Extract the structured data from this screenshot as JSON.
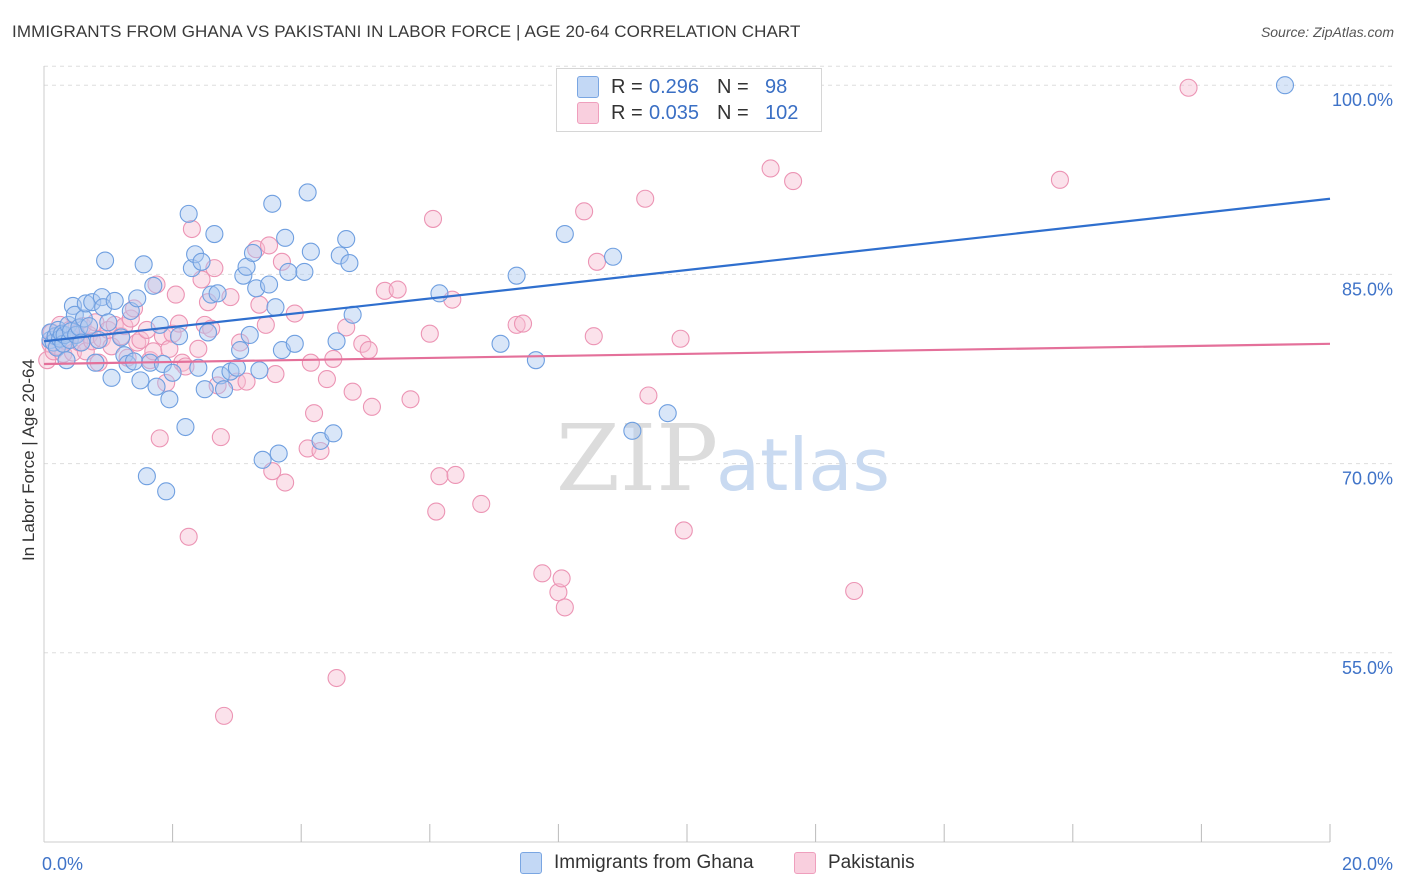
{
  "header": {
    "title": "IMMIGRANTS FROM GHANA VS PAKISTANI IN LABOR FORCE | AGE 20-64 CORRELATION CHART",
    "source": "Source: ZipAtlas.com"
  },
  "watermark": {
    "zip": "ZIP",
    "atlas": "atlas"
  },
  "legend": {
    "r_label": "R =",
    "n_label": "N =",
    "series": [
      {
        "r": "0.296",
        "n": "98"
      },
      {
        "r": "0.035",
        "n": "102"
      }
    ]
  },
  "bottom_legend": [
    "Immigrants from Ghana",
    "Pakistanis"
  ],
  "colors": {
    "blue_fill": "#aac8f0",
    "blue_stroke": "#6f9fe0",
    "blue_line": "#2f6fce",
    "pink_fill": "#f6bfd2",
    "pink_stroke": "#ec94b4",
    "pink_line": "#e4709a",
    "axis_text": "#3f73c8",
    "grid": "#dddddd"
  },
  "chart_data": {
    "type": "scatter",
    "title": "IMMIGRANTS FROM GHANA VS PAKISTANI IN LABOR FORCE | AGE 20-64 CORRELATION CHART",
    "xlabel": "",
    "ylabel": "In Labor Force | Age 20-64",
    "xlim": [
      0,
      20
    ],
    "ylim": [
      40,
      102
    ],
    "x_tick_labels": [
      {
        "value": 0,
        "label": "0.0%"
      },
      {
        "value": 20,
        "label": "20.0%"
      }
    ],
    "y_tick_labels": [
      {
        "value": 100,
        "label": "100.0%"
      },
      {
        "value": 85,
        "label": "85.0%"
      },
      {
        "value": 70,
        "label": "70.0%"
      },
      {
        "value": 55,
        "label": "55.0%"
      }
    ],
    "series": [
      {
        "name": "Immigrants from Ghana",
        "color": "blue",
        "r": 0.296,
        "n": 98,
        "trend": {
          "x": [
            0,
            20
          ],
          "y": [
            79.7,
            91.0
          ]
        },
        "points": [
          [
            0.1,
            79.8
          ],
          [
            0.1,
            80.4
          ],
          [
            0.15,
            79.6
          ],
          [
            0.18,
            80.1
          ],
          [
            0.2,
            79.2
          ],
          [
            0.22,
            80.6
          ],
          [
            0.25,
            79.9
          ],
          [
            0.28,
            80.3
          ],
          [
            0.3,
            79.5
          ],
          [
            0.32,
            80.2
          ],
          [
            0.35,
            78.2
          ],
          [
            0.38,
            81.0
          ],
          [
            0.4,
            79.8
          ],
          [
            0.42,
            80.5
          ],
          [
            0.45,
            82.5
          ],
          [
            0.48,
            81.8
          ],
          [
            0.5,
            80.2
          ],
          [
            0.55,
            80.8
          ],
          [
            0.58,
            79.6
          ],
          [
            0.62,
            81.5
          ],
          [
            0.65,
            82.7
          ],
          [
            0.7,
            80.9
          ],
          [
            0.75,
            82.8
          ],
          [
            0.8,
            78.0
          ],
          [
            0.85,
            79.8
          ],
          [
            0.9,
            83.2
          ],
          [
            0.92,
            82.4
          ],
          [
            0.95,
            86.1
          ],
          [
            1.0,
            81.2
          ],
          [
            1.05,
            76.8
          ],
          [
            1.1,
            82.9
          ],
          [
            1.2,
            80.0
          ],
          [
            1.25,
            78.6
          ],
          [
            1.3,
            77.9
          ],
          [
            1.35,
            82.1
          ],
          [
            1.4,
            78.1
          ],
          [
            1.45,
            83.1
          ],
          [
            1.5,
            76.6
          ],
          [
            1.55,
            85.8
          ],
          [
            1.6,
            69.0
          ],
          [
            1.65,
            78.0
          ],
          [
            1.7,
            84.1
          ],
          [
            1.75,
            76.1
          ],
          [
            1.8,
            81.0
          ],
          [
            1.85,
            77.9
          ],
          [
            1.9,
            67.8
          ],
          [
            1.95,
            75.1
          ],
          [
            2.0,
            77.2
          ],
          [
            2.1,
            80.1
          ],
          [
            2.2,
            72.9
          ],
          [
            2.25,
            89.8
          ],
          [
            2.3,
            85.5
          ],
          [
            2.35,
            86.6
          ],
          [
            2.4,
            77.6
          ],
          [
            2.45,
            86.0
          ],
          [
            2.5,
            75.9
          ],
          [
            2.55,
            80.4
          ],
          [
            2.6,
            83.4
          ],
          [
            2.65,
            88.2
          ],
          [
            2.7,
            83.5
          ],
          [
            2.75,
            77.0
          ],
          [
            2.8,
            75.9
          ],
          [
            2.9,
            77.3
          ],
          [
            3.0,
            77.6
          ],
          [
            3.05,
            79.0
          ],
          [
            3.1,
            84.9
          ],
          [
            3.15,
            85.6
          ],
          [
            3.2,
            80.2
          ],
          [
            3.25,
            86.7
          ],
          [
            3.3,
            83.9
          ],
          [
            3.35,
            77.4
          ],
          [
            3.4,
            70.3
          ],
          [
            3.5,
            84.2
          ],
          [
            3.55,
            90.6
          ],
          [
            3.6,
            82.4
          ],
          [
            3.65,
            70.8
          ],
          [
            3.7,
            79.0
          ],
          [
            3.75,
            87.9
          ],
          [
            3.8,
            85.2
          ],
          [
            3.9,
            79.5
          ],
          [
            4.05,
            85.2
          ],
          [
            4.1,
            91.5
          ],
          [
            4.15,
            86.8
          ],
          [
            4.3,
            71.8
          ],
          [
            4.5,
            72.4
          ],
          [
            4.55,
            79.7
          ],
          [
            4.6,
            86.5
          ],
          [
            4.7,
            87.8
          ],
          [
            4.75,
            85.9
          ],
          [
            4.8,
            81.8
          ],
          [
            6.15,
            83.5
          ],
          [
            7.1,
            79.5
          ],
          [
            7.35,
            84.9
          ],
          [
            7.65,
            78.2
          ],
          [
            8.1,
            88.2
          ],
          [
            8.85,
            86.4
          ],
          [
            9.15,
            72.6
          ],
          [
            9.7,
            74.0
          ],
          [
            19.3,
            100.0
          ]
        ]
      },
      {
        "name": "Pakistanis",
        "color": "pink",
        "r": 0.035,
        "n": 102,
        "trend": {
          "x": [
            0,
            20
          ],
          "y": [
            77.9,
            79.5
          ]
        },
        "points": [
          [
            0.05,
            78.2
          ],
          [
            0.1,
            79.5
          ],
          [
            0.12,
            80.4
          ],
          [
            0.15,
            78.9
          ],
          [
            0.18,
            80.1
          ],
          [
            0.2,
            79.3
          ],
          [
            0.25,
            81.0
          ],
          [
            0.3,
            78.7
          ],
          [
            0.35,
            79.7
          ],
          [
            0.4,
            80.6
          ],
          [
            0.45,
            78.8
          ],
          [
            0.5,
            80.3
          ],
          [
            0.55,
            79.6
          ],
          [
            0.6,
            80.9
          ],
          [
            0.65,
            78.9
          ],
          [
            0.7,
            80.2
          ],
          [
            0.75,
            79.7
          ],
          [
            0.8,
            81.2
          ],
          [
            0.85,
            78.0
          ],
          [
            0.9,
            79.9
          ],
          [
            1.0,
            80.6
          ],
          [
            1.05,
            79.3
          ],
          [
            1.1,
            81.0
          ],
          [
            1.2,
            80.1
          ],
          [
            1.25,
            80.9
          ],
          [
            1.3,
            78.4
          ],
          [
            1.35,
            81.5
          ],
          [
            1.4,
            82.3
          ],
          [
            1.45,
            79.6
          ],
          [
            1.5,
            79.8
          ],
          [
            1.6,
            80.6
          ],
          [
            1.65,
            78.2
          ],
          [
            1.7,
            78.9
          ],
          [
            1.75,
            84.2
          ],
          [
            1.8,
            72.0
          ],
          [
            1.85,
            80.1
          ],
          [
            1.9,
            76.4
          ],
          [
            1.95,
            79.1
          ],
          [
            2.0,
            80.3
          ],
          [
            2.05,
            83.4
          ],
          [
            2.1,
            81.1
          ],
          [
            2.15,
            78.0
          ],
          [
            2.2,
            77.7
          ],
          [
            2.25,
            64.2
          ],
          [
            2.3,
            88.6
          ],
          [
            2.4,
            79.1
          ],
          [
            2.45,
            84.6
          ],
          [
            2.5,
            81.0
          ],
          [
            2.55,
            82.8
          ],
          [
            2.6,
            80.7
          ],
          [
            2.65,
            85.5
          ],
          [
            2.7,
            76.2
          ],
          [
            2.75,
            72.1
          ],
          [
            2.8,
            50.0
          ],
          [
            2.9,
            83.2
          ],
          [
            3.0,
            76.5
          ],
          [
            3.05,
            79.6
          ],
          [
            3.15,
            76.5
          ],
          [
            3.3,
            87.0
          ],
          [
            3.35,
            82.6
          ],
          [
            3.45,
            81.0
          ],
          [
            3.5,
            87.3
          ],
          [
            3.55,
            69.4
          ],
          [
            3.6,
            77.1
          ],
          [
            3.7,
            86.0
          ],
          [
            3.75,
            68.5
          ],
          [
            3.9,
            81.9
          ],
          [
            4.1,
            71.2
          ],
          [
            4.15,
            78.0
          ],
          [
            4.2,
            74.0
          ],
          [
            4.3,
            71.0
          ],
          [
            4.4,
            76.7
          ],
          [
            4.5,
            78.3
          ],
          [
            4.55,
            53.0
          ],
          [
            4.7,
            80.8
          ],
          [
            4.8,
            75.7
          ],
          [
            4.95,
            79.5
          ],
          [
            5.05,
            79.0
          ],
          [
            5.1,
            74.5
          ],
          [
            5.3,
            83.7
          ],
          [
            5.5,
            83.8
          ],
          [
            5.7,
            75.1
          ],
          [
            6.0,
            80.3
          ],
          [
            6.05,
            89.4
          ],
          [
            6.1,
            66.2
          ],
          [
            6.15,
            69.0
          ],
          [
            6.35,
            83.0
          ],
          [
            6.4,
            69.1
          ],
          [
            6.8,
            66.8
          ],
          [
            7.35,
            81.0
          ],
          [
            7.45,
            81.1
          ],
          [
            7.75,
            61.3
          ],
          [
            8.0,
            59.8
          ],
          [
            8.05,
            60.9
          ],
          [
            8.1,
            58.6
          ],
          [
            8.4,
            90.0
          ],
          [
            8.55,
            80.1
          ],
          [
            8.6,
            86.0
          ],
          [
            9.35,
            91.0
          ],
          [
            9.4,
            75.4
          ],
          [
            9.9,
            79.9
          ],
          [
            9.95,
            64.7
          ],
          [
            11.3,
            93.4
          ],
          [
            11.65,
            92.4
          ],
          [
            12.6,
            59.9
          ],
          [
            15.8,
            92.5
          ],
          [
            17.8,
            99.8
          ]
        ]
      }
    ]
  }
}
